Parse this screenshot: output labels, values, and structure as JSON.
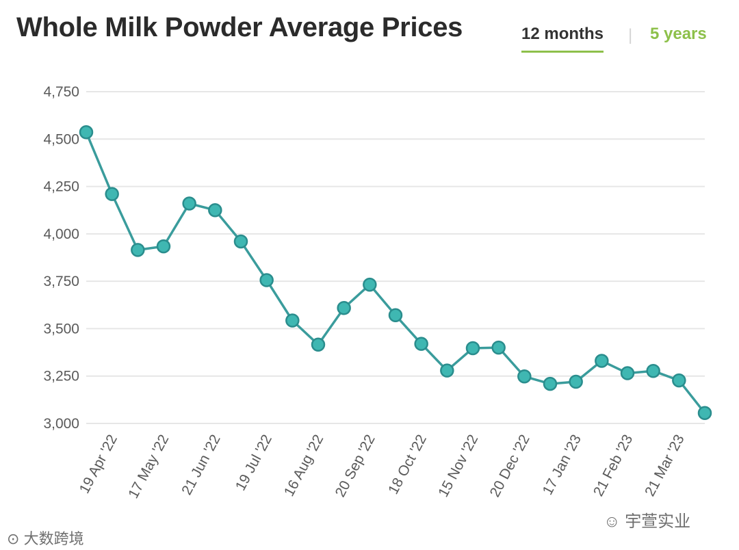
{
  "header": {
    "title": "Whole Milk Powder Average Prices",
    "tabs": [
      {
        "label": "12 months",
        "active": true
      },
      {
        "label": "5 years",
        "active": false
      }
    ],
    "separator": "|"
  },
  "colors": {
    "line": "#3a9c9c",
    "marker_fill": "#3fb7b2",
    "marker_stroke": "#2a8d8d",
    "grid": "#e6e6e6",
    "accent": "#8dc04a",
    "axis_text": "#5a5a5a"
  },
  "watermarks": {
    "left": "大数跨境",
    "right": "宇萱实业"
  },
  "chart_data": {
    "type": "line",
    "title": "Whole Milk Powder Average Prices",
    "xlabel": "",
    "ylabel": "",
    "ylim": [
      3000,
      4750
    ],
    "yticks": [
      3000,
      3250,
      3500,
      3750,
      4000,
      4250,
      4500,
      4750
    ],
    "ytick_labels": [
      "3,000",
      "3,250",
      "3,500",
      "3,750",
      "4,000",
      "4,250",
      "4,500",
      "4,750"
    ],
    "grid": true,
    "series": [
      {
        "name": "Whole Milk Powder",
        "values": [
          4536,
          4210,
          3915,
          3934,
          4160,
          4125,
          3960,
          3756,
          3543,
          3416,
          3609,
          3732,
          3571,
          3420,
          3279,
          3397,
          3400,
          3248,
          3209,
          3220,
          3330,
          3265,
          3277,
          3227,
          3055
        ]
      }
    ],
    "xtick_labels": [
      {
        "label": "19 Apr '22",
        "index": 1
      },
      {
        "label": "17 May '22",
        "index": 3
      },
      {
        "label": "21 Jun '22",
        "index": 5
      },
      {
        "label": "19 Jul '22",
        "index": 7
      },
      {
        "label": "16 Aug '22",
        "index": 9
      },
      {
        "label": "20 Sep '22",
        "index": 11
      },
      {
        "label": "18 Oct '22",
        "index": 13
      },
      {
        "label": "15 Nov '22",
        "index": 15
      },
      {
        "label": "20 Dec '22",
        "index": 17
      },
      {
        "label": "17 Jan '23",
        "index": 19
      },
      {
        "label": "21 Feb '23",
        "index": 21
      },
      {
        "label": "21 Mar '23",
        "index": 23
      }
    ]
  }
}
